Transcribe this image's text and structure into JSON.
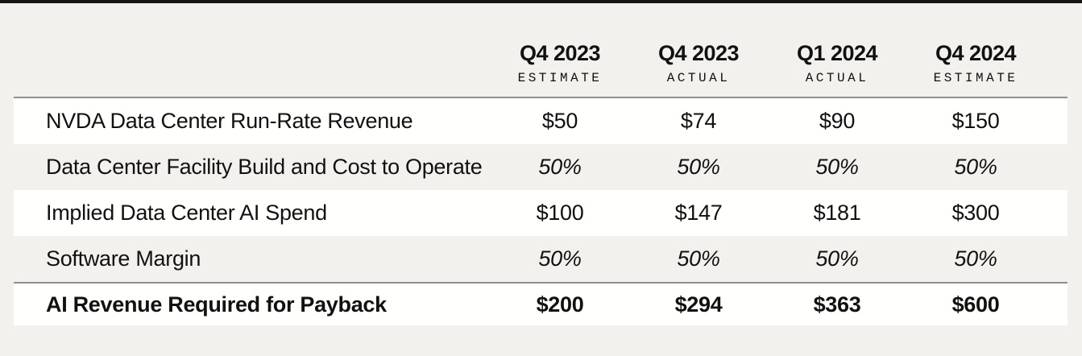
{
  "page": {
    "background_color": "#f2f1ed",
    "top_strip_color": "#161616",
    "row_highlight_color": "#fffffe",
    "rule_color": "#8f8f8f",
    "text_color": "#111111"
  },
  "table": {
    "columns": [
      {
        "period": "Q4 2023",
        "type": "ESTIMATE"
      },
      {
        "period": "Q4 2023",
        "type": "ACTUAL"
      },
      {
        "period": "Q1 2024",
        "type": "ACTUAL"
      },
      {
        "period": "Q4 2024",
        "type": "ESTIMATE"
      }
    ],
    "rows": [
      {
        "label": "NVDA Data Center Run-Rate Revenue",
        "values": [
          "$50",
          "$74",
          "$90",
          "$150"
        ]
      },
      {
        "label": "Data Center Facility Build and Cost to Operate",
        "values": [
          "50%",
          "50%",
          "50%",
          "50%"
        ]
      },
      {
        "label": "Implied Data Center AI Spend",
        "values": [
          "$100",
          "$147",
          "$181",
          "$300"
        ]
      },
      {
        "label": "Software Margin",
        "values": [
          "50%",
          "50%",
          "50%",
          "50%"
        ]
      },
      {
        "label": "AI Revenue Required for Payback",
        "values": [
          "$200",
          "$294",
          "$363",
          "$600"
        ]
      }
    ]
  },
  "chart_data": {
    "type": "table",
    "column_headers": [
      "Q4 2023 ESTIMATE",
      "Q4 2023 ACTUAL",
      "Q1 2024 ACTUAL",
      "Q4 2024 ESTIMATE"
    ],
    "row_labels": [
      "NVDA Data Center Run-Rate Revenue",
      "Data Center Facility Build and Cost to Operate",
      "Implied Data Center AI Spend",
      "Software Margin",
      "AI Revenue Required for Payback"
    ],
    "cell_values": [
      [
        "$50",
        "$74",
        "$90",
        "$150"
      ],
      [
        "50%",
        "50%",
        "50%",
        "50%"
      ],
      [
        "$100",
        "$147",
        "$181",
        "$300"
      ],
      [
        "50%",
        "50%",
        "50%",
        "50%"
      ],
      [
        "$200",
        "$294",
        "$363",
        "$600"
      ]
    ],
    "notes_layout": {
      "italic_rows": [
        1,
        3
      ],
      "bold_rows": [
        4
      ],
      "highlighted_rows": [
        0,
        2,
        4
      ],
      "rules_above_rows": [
        0,
        4
      ]
    }
  }
}
